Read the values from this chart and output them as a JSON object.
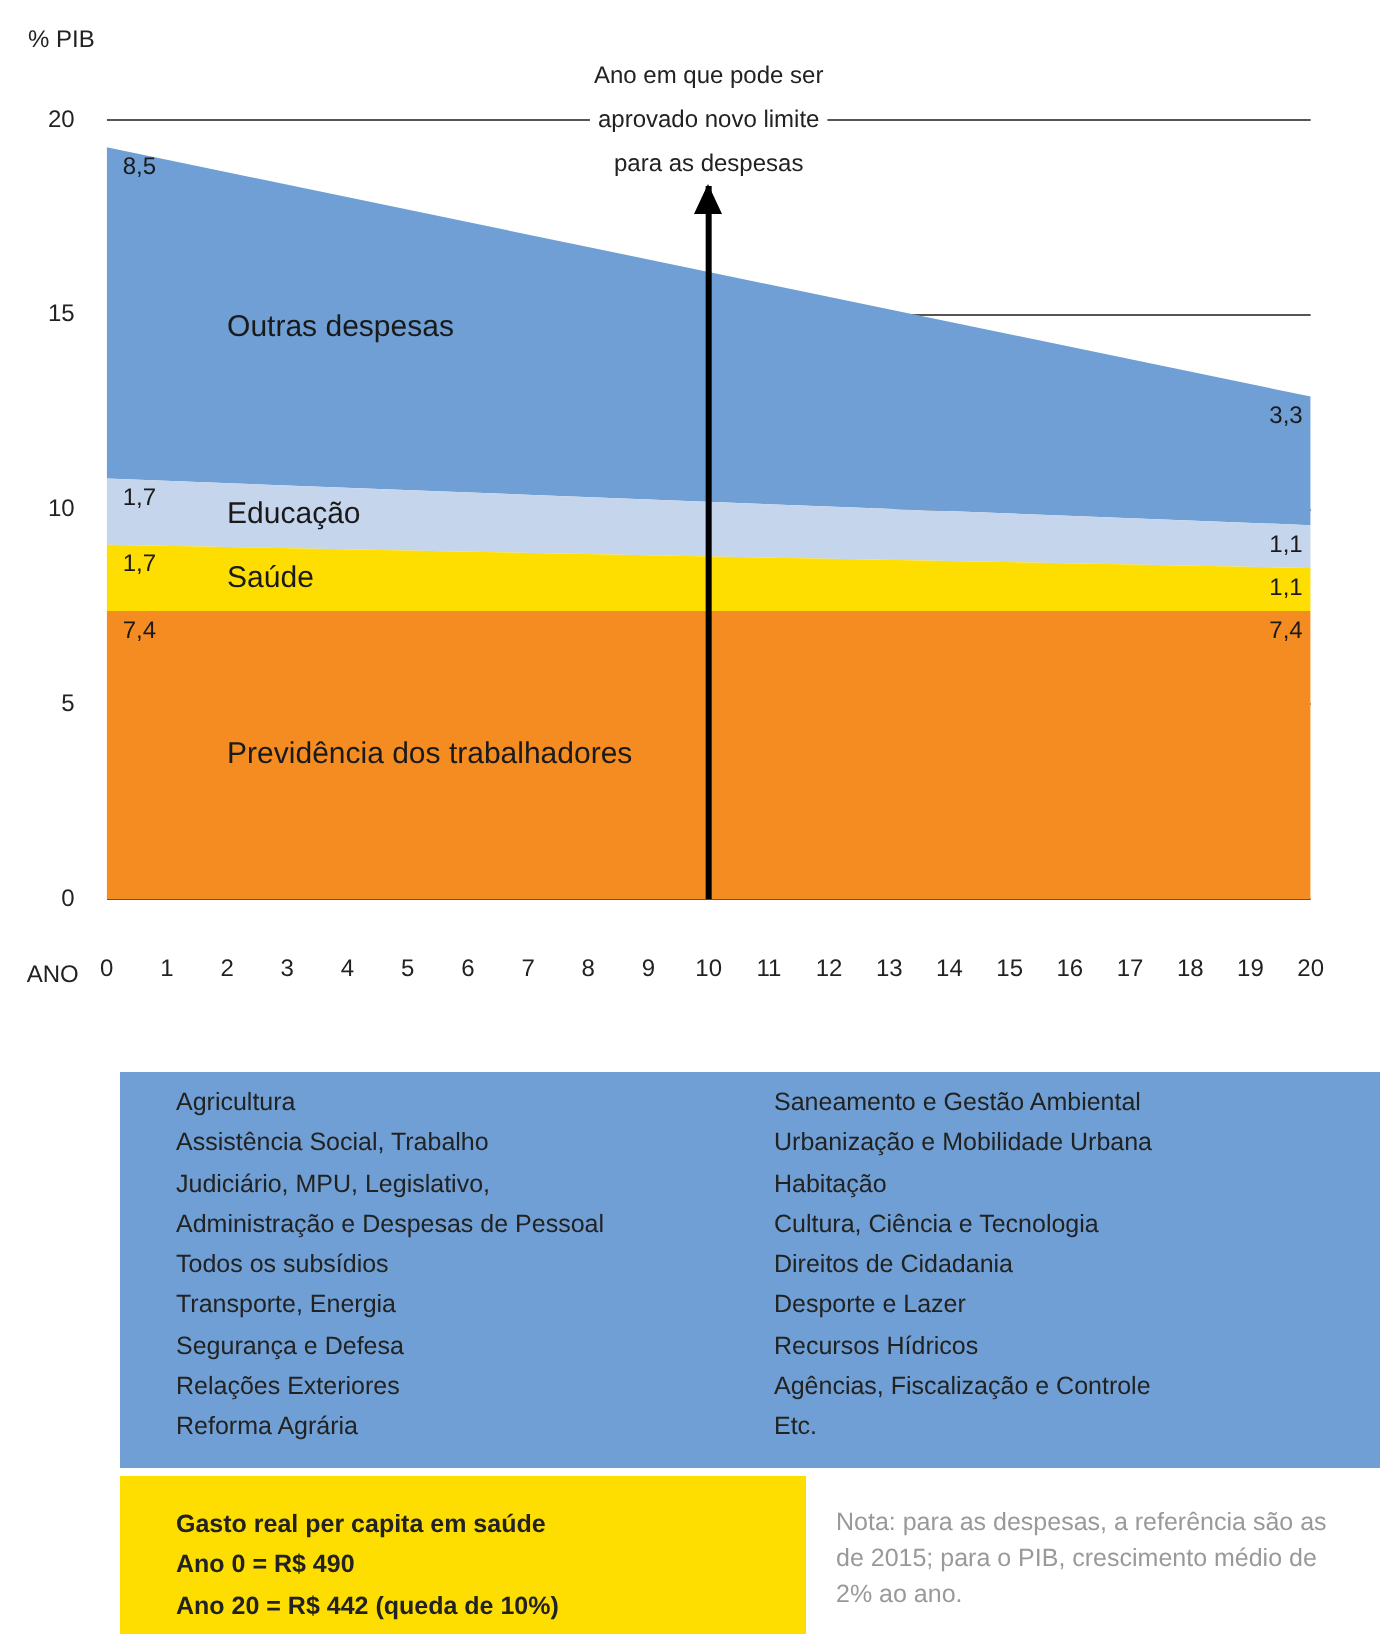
{
  "chart_data": {
    "type": "area",
    "stacked": true,
    "ylabel": "% PIB",
    "xlabel": "ANO",
    "x": [
      0,
      20
    ],
    "xlim": [
      0,
      20
    ],
    "xticks": [
      0,
      1,
      2,
      3,
      4,
      5,
      6,
      7,
      8,
      9,
      10,
      11,
      12,
      13,
      14,
      15,
      16,
      17,
      18,
      19,
      20
    ],
    "ylim": [
      0,
      20
    ],
    "yticks": [
      0,
      5,
      10,
      15,
      20
    ],
    "grid": "y",
    "legend": false,
    "marker": "none",
    "series": [
      {
        "name": "Previdência dos trabalhadores",
        "color": "#f58c22",
        "values": [
          7.4,
          7.4
        ],
        "value_labels": [
          "7,4",
          "7,4"
        ]
      },
      {
        "name": "Saúde",
        "color": "#fedd00",
        "values": [
          1.7,
          1.1
        ],
        "value_labels": [
          "1,7",
          "1,1"
        ]
      },
      {
        "name": "Educação",
        "color": "#c5d5ec",
        "values": [
          1.7,
          1.1
        ],
        "value_labels": [
          "1,7",
          "1,1"
        ]
      },
      {
        "name": "Outras despesas",
        "color": "#6f9fd4",
        "values": [
          8.5,
          3.3
        ],
        "value_labels": [
          "8,5",
          "3,3"
        ]
      }
    ],
    "ref_lines": [
      {
        "axis": "x",
        "value": 10,
        "label": "Ano em que pode ser aprovado novo limite para as despesas",
        "color": "#000000"
      }
    ],
    "annotations": [
      "Agricultura\nAssistência Social, Trabalho\nJudiciário, MPU, Legislativo,\nAdministração e Despesas de Pessoal\nTodos os subsídios\nTransporte, Energia\nSegurança e Defesa\nRelações Exteriores\nReforma Agrária\nSaneamento e Gestão Ambiental\nUrbanização e Mobilidade Urbana\nHabitação\nCultura, Ciência e Tecnologia\nDireitos de Cidadania\nDesporte e Lazer\nRecursos Hídricos\nAgências, Fiscalização e Controle\nEtc.",
      "Gasto real per capita em saúde\nAno 0 = R$ 490\nAno 20 = R$ 442 (queda de 10%)",
      "Nota: para as despesas, a referência são as de 2015; para o PIB, crescimento médio de 2% ao ano."
    ]
  }
}
